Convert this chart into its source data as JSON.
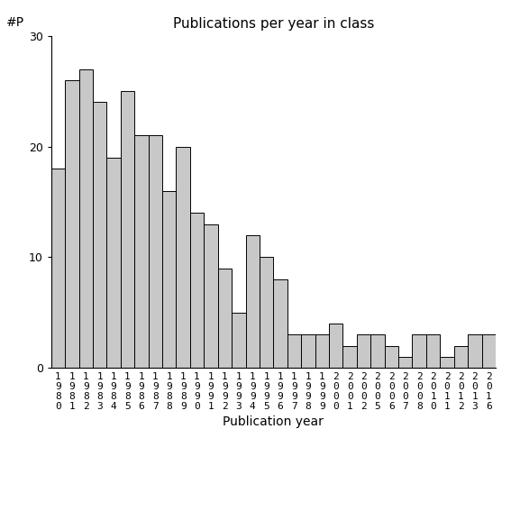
{
  "title": "Publications per year in class",
  "xlabel": "Publication year",
  "ylabel": "#P",
  "bar_color": "#c8c8c8",
  "edge_color": "#000000",
  "ylim": [
    0,
    30
  ],
  "yticks": [
    0,
    10,
    20,
    30
  ],
  "years": [
    "1980",
    "1981",
    "1982",
    "1983",
    "1984",
    "1985",
    "1986",
    "1987",
    "1988",
    "1989",
    "1990",
    "1991",
    "1992",
    "1993",
    "1994",
    "1995",
    "1996",
    "1997",
    "1998",
    "1999",
    "2000",
    "2001",
    "2002",
    "2005",
    "2006",
    "2007",
    "2008",
    "2010",
    "2011",
    "2012",
    "2013",
    "2016"
  ],
  "values": [
    18,
    26,
    27,
    24,
    19,
    25,
    21,
    21,
    16,
    20,
    14,
    13,
    9,
    5,
    12,
    10,
    8,
    3,
    3,
    3,
    4,
    2,
    3,
    3,
    2,
    1,
    3,
    3,
    1,
    2,
    3,
    3
  ],
  "background_color": "#ffffff"
}
